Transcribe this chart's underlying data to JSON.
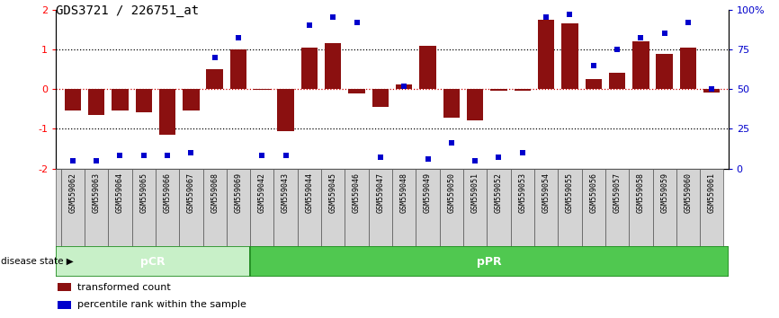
{
  "title": "GDS3721 / 226751_at",
  "samples": [
    "GSM559062",
    "GSM559063",
    "GSM559064",
    "GSM559065",
    "GSM559066",
    "GSM559067",
    "GSM559068",
    "GSM559069",
    "GSM559042",
    "GSM559043",
    "GSM559044",
    "GSM559045",
    "GSM559046",
    "GSM559047",
    "GSM559048",
    "GSM559049",
    "GSM559050",
    "GSM559051",
    "GSM559052",
    "GSM559053",
    "GSM559054",
    "GSM559055",
    "GSM559056",
    "GSM559057",
    "GSM559058",
    "GSM559059",
    "GSM559060",
    "GSM559061"
  ],
  "transformed_count": [
    -0.55,
    -0.65,
    -0.55,
    -0.58,
    -1.15,
    -0.55,
    0.5,
    1.0,
    -0.02,
    -1.05,
    1.05,
    1.15,
    -0.1,
    -0.45,
    0.12,
    1.08,
    -0.72,
    -0.78,
    -0.05,
    -0.05,
    1.75,
    1.65,
    0.25,
    0.4,
    1.2,
    0.88,
    1.05,
    -0.08
  ],
  "percentile_rank": [
    5,
    5,
    8,
    8,
    8,
    10,
    70,
    82,
    8,
    8,
    90,
    95,
    92,
    7,
    52,
    6,
    16,
    5,
    7,
    10,
    95,
    97,
    65,
    75,
    82,
    85,
    92,
    50
  ],
  "pcr_count": 8,
  "ppr_count": 20,
  "ylim": [
    -2,
    2
  ],
  "y2lim": [
    0,
    100
  ],
  "bar_color": "#8B1010",
  "scatter_color": "#0000CC",
  "pcr_facecolor": "#C8F0C8",
  "ppr_facecolor": "#50C850",
  "dotted_line_color": "#000000",
  "zero_line_color": "#CC0000",
  "title_fontsize": 10,
  "tick_label_fontsize": 6.0
}
